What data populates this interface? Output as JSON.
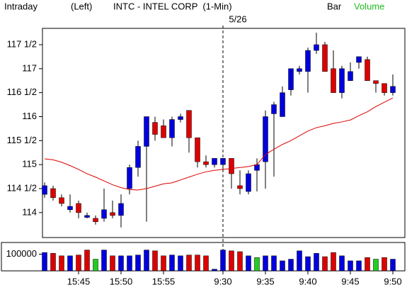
{
  "chart_data": {
    "type": "candlestick",
    "title": "INTC - INTEL CORP  (1-Min)",
    "header_left": "Intraday",
    "header_mode": "(Left)",
    "header_bar": "Bar",
    "header_volume": "Volume",
    "annotation": "5/26",
    "categories": [
      null,
      null,
      null,
      null,
      "15:45",
      null,
      null,
      null,
      null,
      "15:50",
      null,
      null,
      null,
      null,
      "15:55",
      null,
      null,
      null,
      null,
      null,
      null,
      "9:30",
      null,
      null,
      null,
      null,
      "9:35",
      null,
      null,
      null,
      null,
      "9:40",
      null,
      null,
      null,
      null,
      "9:45",
      null,
      null,
      null,
      null,
      "9:50"
    ],
    "open": [
      114.38,
      114.5,
      114.31,
      114.06,
      114.19,
      113.9,
      113.88,
      113.88,
      114.0,
      113.94,
      114.5,
      114.94,
      115.38,
      115.88,
      115.81,
      115.56,
      115.94,
      116.13,
      115.56,
      115.06,
      115.0,
      115.0,
      115.13,
      114.56,
      114.44,
      114.88,
      115.06,
      116.06,
      116.0,
      116.56,
      116.94,
      116.94,
      117.38,
      117.5,
      117.0,
      116.5,
      116.75,
      117.13,
      117.19,
      116.75,
      116.69,
      116.5
    ],
    "high": [
      114.63,
      114.56,
      114.38,
      114.38,
      114.25,
      114.0,
      113.94,
      114.5,
      114.25,
      114.38,
      115.0,
      115.5,
      116.0,
      116.0,
      115.94,
      116.0,
      116.06,
      116.13,
      115.56,
      115.19,
      115.13,
      115.13,
      115.13,
      114.88,
      114.88,
      115.13,
      116.13,
      116.31,
      116.63,
      117.0,
      117.06,
      117.44,
      117.75,
      117.56,
      117.38,
      117.06,
      117.13,
      117.25,
      117.25,
      116.75,
      116.69,
      116.88
    ],
    "low": [
      114.31,
      114.25,
      114.13,
      114.0,
      113.88,
      113.88,
      113.75,
      113.81,
      113.88,
      113.69,
      114.38,
      114.75,
      113.81,
      115.5,
      115.56,
      115.38,
      115.88,
      115.25,
      114.94,
      114.94,
      114.94,
      114.88,
      114.5,
      114.38,
      114.38,
      114.44,
      114.5,
      114.75,
      116.0,
      116.44,
      116.88,
      116.5,
      117.31,
      116.94,
      116.5,
      116.38,
      116.75,
      117.0,
      116.75,
      116.5,
      116.44,
      116.44
    ],
    "close": [
      114.56,
      114.31,
      114.19,
      114.13,
      114.0,
      113.94,
      113.81,
      114.06,
      113.94,
      114.19,
      114.94,
      115.38,
      116.0,
      115.63,
      115.56,
      115.94,
      116.0,
      115.56,
      115.06,
      115.0,
      115.13,
      115.13,
      114.81,
      114.5,
      114.81,
      115.0,
      116.0,
      116.25,
      116.5,
      117.0,
      117.0,
      117.38,
      117.5,
      116.94,
      116.5,
      117.0,
      116.94,
      117.25,
      116.75,
      116.69,
      116.5,
      116.63
    ],
    "up_color": "#0000dd",
    "down_color": "#dd0000",
    "moving_average": {
      "color": "#dd0000",
      "values": [
        115.12,
        115.1,
        115.05,
        114.98,
        114.9,
        114.81,
        114.74,
        114.66,
        114.58,
        114.52,
        114.48,
        114.47,
        114.5,
        114.55,
        114.6,
        114.62,
        114.68,
        114.74,
        114.8,
        114.85,
        114.88,
        114.9,
        114.92,
        114.94,
        114.96,
        115.0,
        115.21,
        115.32,
        115.42,
        115.5,
        115.6,
        115.7,
        115.77,
        115.81,
        115.86,
        115.89,
        115.93,
        116.02,
        116.1,
        116.21,
        116.3,
        116.39
      ]
    },
    "ylim": [
      113.48,
      117.84
    ],
    "yticks": [
      {
        "value": 114,
        "label": "114"
      },
      {
        "value": 114.5,
        "label": "114 1/2"
      },
      {
        "value": 115,
        "label": "115"
      },
      {
        "value": 115.5,
        "label": "115 1/2"
      },
      {
        "value": 116,
        "label": "116"
      },
      {
        "value": 116.5,
        "label": "116 1/2"
      },
      {
        "value": 117,
        "label": "117"
      },
      {
        "value": 117.5,
        "label": "117 1/2"
      }
    ],
    "volume": {
      "values": [
        110000,
        105000,
        90000,
        90000,
        95000,
        125000,
        70000,
        125000,
        90000,
        90000,
        90000,
        95000,
        125000,
        120000,
        90000,
        95000,
        90000,
        95000,
        95000,
        90000,
        10000,
        125000,
        120000,
        115000,
        90000,
        80000,
        90000,
        90000,
        60000,
        70000,
        120000,
        85000,
        105000,
        85000,
        110000,
        90000,
        60000,
        60000,
        80000,
        70000,
        80000,
        70000
      ],
      "colors": [
        "#0000dd",
        "#dd0000",
        "#dd0000",
        "#0000dd",
        "#dd0000",
        "#dd0000",
        "#22cc22",
        "#0000dd",
        "#dd0000",
        "#0000dd",
        "#0000dd",
        "#0000dd",
        "#0000dd",
        "#dd0000",
        "#dd0000",
        "#0000dd",
        "#0000dd",
        "#dd0000",
        "#dd0000",
        "#dd0000",
        "#0000dd",
        "#0000dd",
        "#dd0000",
        "#dd0000",
        "#0000dd",
        "#22cc22",
        "#0000dd",
        "#0000dd",
        "#0000dd",
        "#0000dd",
        "#0000dd",
        "#0000dd",
        "#0000dd",
        "#dd0000",
        "#dd0000",
        "#0000dd",
        "#0000dd",
        "#0000dd",
        "#dd0000",
        "#22cc22",
        "#dd0000",
        "#0000dd"
      ],
      "ylim": [
        0,
        170000
      ],
      "yticks": [
        100000
      ]
    }
  }
}
